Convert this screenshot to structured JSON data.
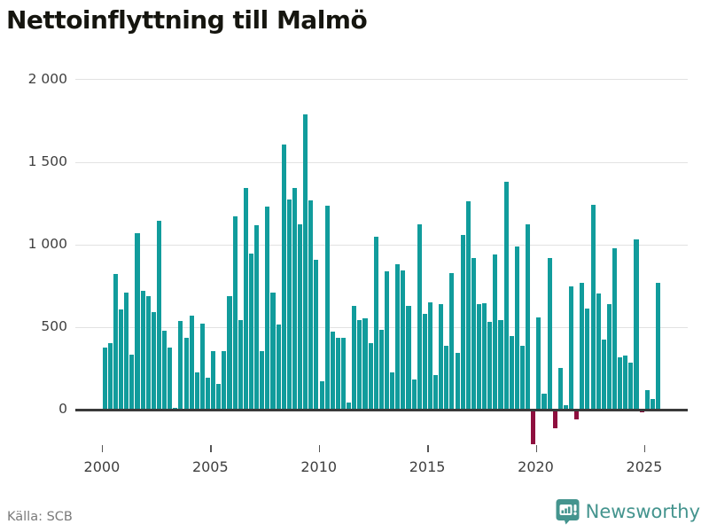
{
  "title": "Nettoinflyttning till Malmö",
  "source": "Källa: SCB",
  "brand": {
    "name": "Newsworthy"
  },
  "colors": {
    "positive_bar": "#119c9c",
    "negative_bar": "#8e0f3e",
    "gridline": "#e2e2e2",
    "zero_axis": "#3a3a3a",
    "axis_text": "#3f3f3f",
    "title_text": "#15150f",
    "source_text": "#7a7a7a",
    "brand_teal": "#44948e"
  },
  "chart_data": {
    "type": "bar",
    "title": "Nettoinflyttning till Malmö",
    "xlabel": "",
    "ylabel": "",
    "grid": "horizontal",
    "legend": "none",
    "ylim": [
      -260,
      2050
    ],
    "y_tick_values": [
      0,
      500,
      1000,
      1500,
      2000
    ],
    "y_tick_labels": [
      "0",
      "500",
      "1 000",
      "1 500",
      "2 000"
    ],
    "x_tick_labels": [
      "2000",
      "2005",
      "2010",
      "2015",
      "2020",
      "2025"
    ],
    "frequency": "quarterly",
    "start": "2000 Q1",
    "end": "2025 Q3",
    "series": [
      {
        "name": "Nettoinflyttning till Malmö",
        "values": [
          375,
          405,
          825,
          610,
          710,
          335,
          1070,
          720,
          690,
          590,
          1145,
          480,
          380,
          15,
          540,
          435,
          570,
          225,
          520,
          195,
          355,
          155,
          355,
          690,
          1175,
          545,
          1345,
          945,
          1120,
          355,
          1230,
          710,
          515,
          1610,
          1275,
          1345,
          1125,
          1790,
          1270,
          910,
          175,
          1235,
          475,
          435,
          435,
          45,
          630,
          545,
          555,
          405,
          1050,
          485,
          840,
          225,
          885,
          845,
          630,
          185,
          1125,
          580,
          650,
          210,
          640,
          390,
          830,
          345,
          1060,
          1265,
          920,
          640,
          645,
          535,
          940,
          545,
          1380,
          445,
          990,
          390,
          1125,
          -210,
          560,
          100,
          920,
          -110,
          255,
          30,
          750,
          -55,
          770,
          615,
          1240,
          705,
          425,
          640,
          980,
          320,
          330,
          285,
          1035,
          -15,
          120,
          65,
          770
        ]
      }
    ]
  }
}
